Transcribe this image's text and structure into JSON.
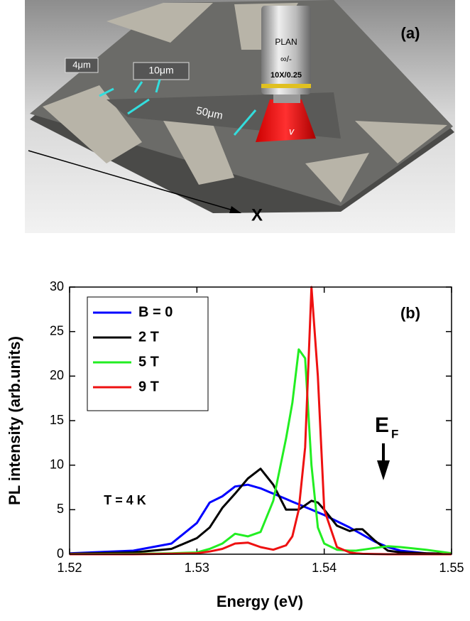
{
  "panel_a": {
    "label": "(a)",
    "axis_label": "X",
    "objective": [
      "PLAN",
      "∞/-",
      "10X/0.25"
    ],
    "symbol": "v",
    "dimensions": [
      "4μm",
      "10μm",
      "50μm"
    ]
  },
  "chart_data": {
    "type": "line",
    "label": "(b)",
    "x_label": "Energy (eV)",
    "y_label": "PL intensity (arb.units)",
    "annotation": "T = 4 K",
    "fermi_label": {
      "main": "E",
      "sub": "F"
    },
    "x": [
      1.52,
      1.525,
      1.528,
      1.53,
      1.531,
      1.532,
      1.533,
      1.534,
      1.535,
      1.536,
      1.537,
      1.5375,
      1.538,
      1.5385,
      1.539,
      1.5395,
      1.54,
      1.541,
      1.542,
      1.5425,
      1.543,
      1.544,
      1.545,
      1.546,
      1.548,
      1.55
    ],
    "series": [
      {
        "name": "B = 0",
        "color": "#0000ff",
        "values": [
          0.1,
          0.4,
          1.2,
          3.5,
          5.8,
          6.5,
          7.6,
          7.8,
          7.4,
          6.8,
          6.2,
          5.9,
          5.6,
          5.3,
          5.0,
          4.7,
          4.4,
          3.7,
          3.0,
          2.6,
          2.2,
          1.4,
          0.8,
          0.4,
          0.1,
          0.05
        ]
      },
      {
        "name": "2 T",
        "color": "#000000",
        "values": [
          0.05,
          0.2,
          0.6,
          1.8,
          3.0,
          5.2,
          6.8,
          8.5,
          9.6,
          7.8,
          5.0,
          5.0,
          5.0,
          5.5,
          6.0,
          5.8,
          5.0,
          3.2,
          2.6,
          2.8,
          2.8,
          1.5,
          0.4,
          0.2,
          0.1,
          0.05
        ]
      },
      {
        "name": "5 T",
        "color": "#22ee22",
        "values": [
          0.02,
          0.05,
          0.1,
          0.2,
          0.6,
          1.2,
          2.3,
          2.0,
          2.5,
          6,
          13,
          17,
          23,
          22,
          10,
          3,
          1.2,
          0.5,
          0.4,
          0.4,
          0.5,
          0.7,
          0.9,
          0.8,
          0.5,
          0.1
        ]
      },
      {
        "name": "9 T",
        "color": "#ee1111",
        "values": [
          0,
          0,
          0.05,
          0.1,
          0.3,
          0.6,
          1.2,
          1.3,
          0.8,
          0.5,
          1.0,
          2,
          5,
          12,
          30,
          20,
          5,
          0.8,
          0.2,
          0.1,
          0.05,
          0.02,
          0,
          0,
          0,
          0
        ]
      }
    ],
    "xlim": [
      1.52,
      1.55
    ],
    "xticks": [
      1.52,
      1.53,
      1.54,
      1.55
    ],
    "ylim": [
      0,
      30
    ],
    "yticks": [
      0,
      5,
      10,
      15,
      20,
      25,
      30
    ],
    "legend": "upper left"
  }
}
